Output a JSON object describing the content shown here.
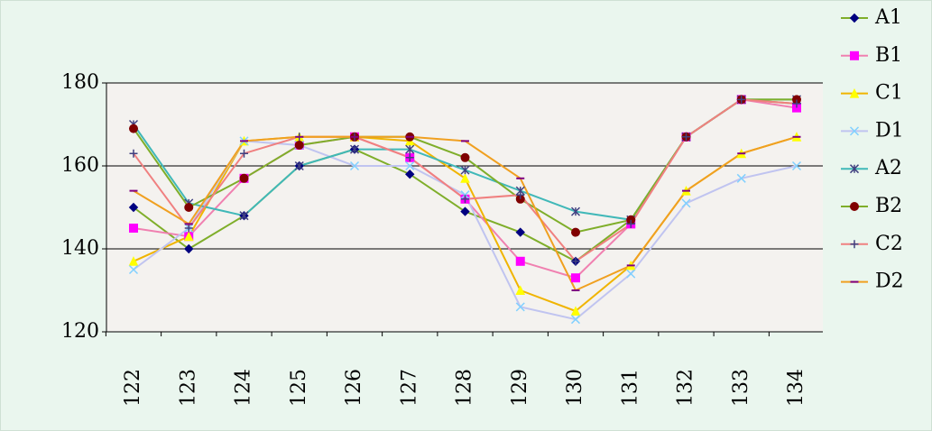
{
  "chart_data": {
    "type": "line",
    "categories": [
      "122",
      "123",
      "124",
      "125",
      "126",
      "127",
      "128",
      "129",
      "130",
      "131",
      "132",
      "133",
      "134"
    ],
    "ylim": [
      120,
      180
    ],
    "yticks": [
      120,
      140,
      160,
      180
    ],
    "grid": true,
    "legend": "right",
    "series": [
      {
        "name": "A1",
        "color": "#7fae2a",
        "marker_color": "#000080",
        "marker": "diamond",
        "values": [
          150,
          140,
          148,
          160,
          164,
          158,
          149,
          144,
          137,
          147,
          167,
          176,
          175
        ]
      },
      {
        "name": "B1",
        "color": "#f080b0",
        "marker_color": "#ff00ff",
        "marker": "square",
        "values": [
          145,
          143,
          157,
          165,
          167,
          162,
          152,
          137,
          133,
          146,
          167,
          176,
          174
        ]
      },
      {
        "name": "C1",
        "color": "#f0b400",
        "marker_color": "#ffff00",
        "marker": "triangle",
        "values": [
          137,
          143,
          166,
          167,
          167,
          166,
          157,
          130,
          125,
          136,
          154,
          163,
          167
        ]
      },
      {
        "name": "D1",
        "color": "#c0c4f0",
        "marker_color": "#80d0ff",
        "marker": "x",
        "values": [
          135,
          145,
          166,
          165,
          160,
          160,
          153,
          126,
          123,
          134,
          151,
          157,
          160
        ]
      },
      {
        "name": "A2",
        "color": "#40b8b8",
        "marker_color": "#404080",
        "marker": "star",
        "values": [
          170,
          151,
          148,
          160,
          164,
          164,
          159,
          154,
          149,
          147,
          167,
          176,
          176
        ]
      },
      {
        "name": "B2",
        "color": "#7fae2a",
        "marker_color": "#800000",
        "marker": "circle",
        "values": [
          169,
          150,
          157,
          165,
          167,
          167,
          162,
          152,
          144,
          147,
          167,
          176,
          176
        ]
      },
      {
        "name": "C2",
        "color": "#f08080",
        "marker_color": "#404080",
        "marker": "plus",
        "values": [
          163,
          145,
          163,
          167,
          167,
          162,
          152,
          153,
          137,
          146,
          167,
          176,
          175
        ]
      },
      {
        "name": "D2",
        "color": "#f0a020",
        "marker_color": "#800080",
        "marker": "dash",
        "values": [
          154,
          146,
          166,
          167,
          167,
          167,
          166,
          157,
          130,
          136,
          154,
          163,
          167
        ]
      }
    ]
  }
}
